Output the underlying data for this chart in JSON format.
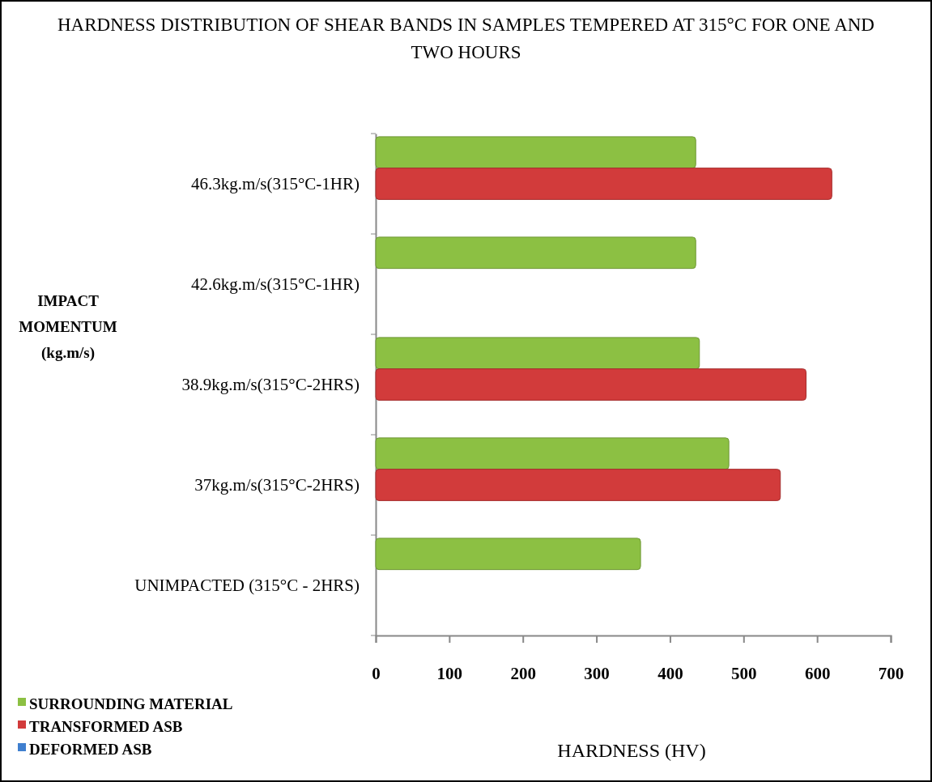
{
  "chart_data": {
    "type": "bar",
    "orientation": "horizontal",
    "title": "HARDNESS DISTRIBUTION OF SHEAR BANDS IN SAMPLES TEMPERED AT 315°C FOR ONE AND TWO HOURS",
    "xlabel": "HARDNESS (HV)",
    "ylabel": "IMPACT MOMENTUM (kg.m/s)",
    "categories": [
      "46.3kg.m/s(315°C-1HR)",
      "42.6kg.m/s(315°C-1HR)",
      "38.9kg.m/s(315°C-2HRS)",
      "37kg.m/s(315°C-2HRS)",
      "UNIMPACTED (315°C - 2HRS)"
    ],
    "series": [
      {
        "name": "SURROUNDING  MATERIAL",
        "color": "#8cc043",
        "values": [
          435,
          435,
          440,
          480,
          360
        ]
      },
      {
        "name": "TRANSFORMED  ASB",
        "color": "#d23b3b",
        "values": [
          620,
          null,
          585,
          550,
          null
        ]
      },
      {
        "name": "DEFORMED ASB",
        "color": "#3f7fcf",
        "values": [
          null,
          null,
          null,
          null,
          null
        ]
      }
    ],
    "xlim": [
      0,
      700
    ],
    "xticks": [
      0,
      100,
      200,
      300,
      400,
      500,
      600,
      700
    ],
    "legend": "bottom left"
  }
}
